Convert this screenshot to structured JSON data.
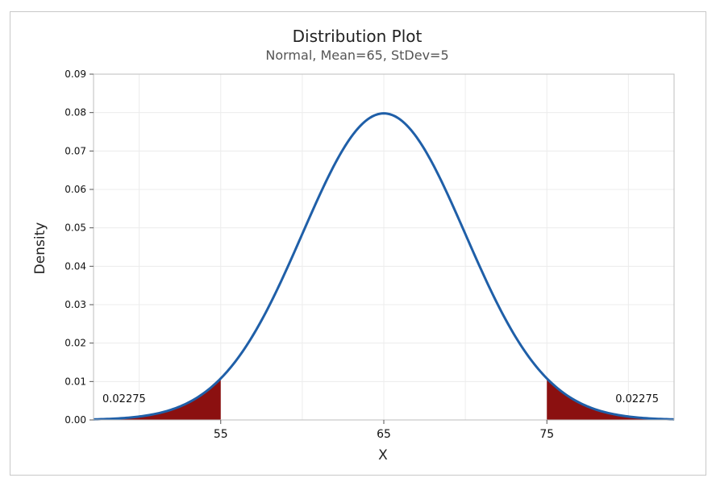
{
  "chart_data": {
    "type": "area",
    "title": "Distribution Plot",
    "subtitle": "Normal, Mean=65, StDev=5",
    "distribution": "Normal",
    "mean": 65,
    "stdev": 5,
    "xlabel": "X",
    "ylabel": "Density",
    "xlim": [
      47.2,
      82.8
    ],
    "ylim": [
      0,
      0.09
    ],
    "x_ticks": [
      55,
      65,
      75
    ],
    "x_tick_labels": [
      "55",
      "65",
      "75"
    ],
    "y_ticks": [
      0,
      0.01,
      0.02,
      0.03,
      0.04,
      0.05,
      0.06,
      0.07,
      0.08,
      0.09
    ],
    "y_tick_labels": [
      "0.00",
      "0.01",
      "0.02",
      "0.03",
      "0.04",
      "0.05",
      "0.06",
      "0.07",
      "0.08",
      "0.09"
    ],
    "x_gridlines": [
      50,
      55,
      60,
      65,
      70,
      75,
      80
    ],
    "shaded_regions": [
      {
        "from": 47.2,
        "to": 55,
        "probability_label": "0.02275",
        "color": "#8b1010"
      },
      {
        "from": 75,
        "to": 82.8,
        "probability_label": "0.02275",
        "color": "#8b1010"
      }
    ],
    "curve_color": "#1f5fa8",
    "grid": true
  }
}
